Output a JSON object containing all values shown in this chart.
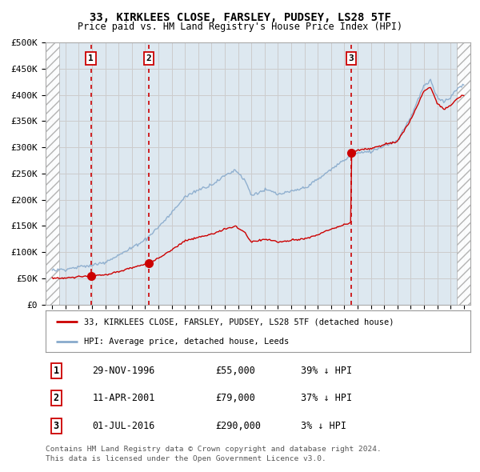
{
  "title": "33, KIRKLEES CLOSE, FARSLEY, PUDSEY, LS28 5TF",
  "subtitle": "Price paid vs. HM Land Registry's House Price Index (HPI)",
  "legend_label_red": "33, KIRKLEES CLOSE, FARSLEY, PUDSEY, LS28 5TF (detached house)",
  "legend_label_blue": "HPI: Average price, detached house, Leeds",
  "ylabel_ticks": [
    "£0",
    "£50K",
    "£100K",
    "£150K",
    "£200K",
    "£250K",
    "£300K",
    "£350K",
    "£400K",
    "£450K",
    "£500K"
  ],
  "ytick_values": [
    0,
    50000,
    100000,
    150000,
    200000,
    250000,
    300000,
    350000,
    400000,
    450000,
    500000
  ],
  "xlim": [
    1993.5,
    2025.5
  ],
  "ylim": [
    0,
    500000
  ],
  "hatch_left_end": 1994.5,
  "hatch_right_start": 2024.5,
  "sale_points": [
    {
      "num": 1,
      "date": "29-NOV-1996",
      "price": 55000,
      "pct": "39%",
      "direction": "↓",
      "year_float": 1996.91
    },
    {
      "num": 2,
      "date": "11-APR-2001",
      "price": 79000,
      "pct": "37%",
      "direction": "↓",
      "year_float": 2001.28
    },
    {
      "num": 3,
      "date": "01-JUL-2016",
      "price": 290000,
      "pct": "3%",
      "direction": "↓",
      "year_float": 2016.5
    }
  ],
  "red_color": "#cc0000",
  "blue_color": "#88aacc",
  "dot_color": "#cc0000",
  "grid_color": "#cccccc",
  "hatch_color": "#aaaaaa",
  "bg_color": "#ffffff",
  "plot_bg_color": "#dde8f0",
  "footnote1": "Contains HM Land Registry data © Crown copyright and database right 2024.",
  "footnote2": "This data is licensed under the Open Government Licence v3.0."
}
